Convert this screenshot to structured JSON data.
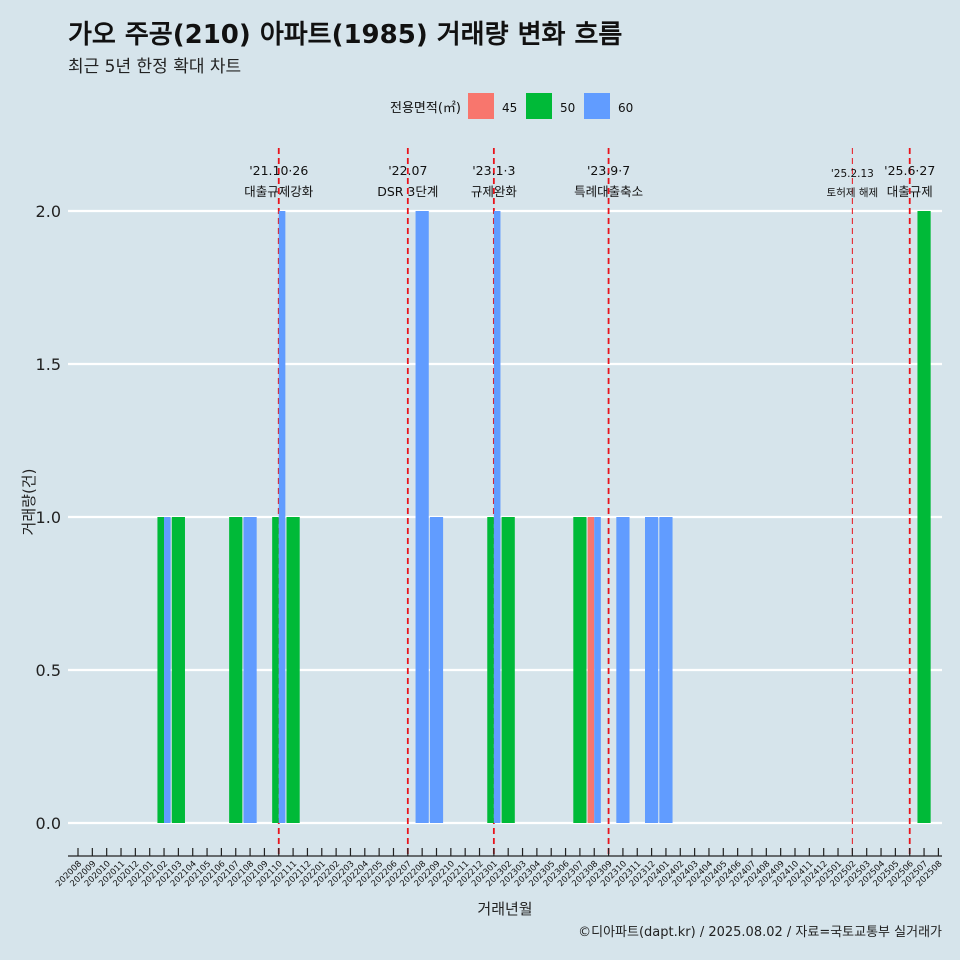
{
  "title": "가오 주공(210) 아파트(1985) 거래량 변화 흐름",
  "subtitle": "최근 5년 한정 확대 차트",
  "caption": "©디아파트(dapt.kr) / 2025.08.02 / 자료=국토교통부 실거래가",
  "colors": {
    "background": "#d6e4eb",
    "45": "#f8766d",
    "50": "#00ba38",
    "60": "#619cff",
    "event_line": "#e8141c"
  },
  "chart_data": {
    "type": "bar",
    "title": "가오 주공(210) 아파트(1985) 거래량 변화 흐름",
    "subtitle": "최근 5년 한정 확대 차트",
    "xlabel": "거래년월",
    "ylabel": "거래량(건)",
    "ylim": [
      0,
      2.0
    ],
    "yticks": [
      "0.0",
      "0.5",
      "1.0",
      "1.5",
      "2.0"
    ],
    "legend": {
      "title": "전용면적(㎡)",
      "position": "top-center",
      "entries": [
        "45",
        "50",
        "60"
      ]
    },
    "categories": [
      "202008",
      "202009",
      "202010",
      "202011",
      "202012",
      "202101",
      "202102",
      "202103",
      "202104",
      "202105",
      "202106",
      "202107",
      "202108",
      "202109",
      "202110",
      "202111",
      "202112",
      "202201",
      "202202",
      "202203",
      "202204",
      "202205",
      "202206",
      "202207",
      "202208",
      "202209",
      "202210",
      "202211",
      "202212",
      "202301",
      "202302",
      "202303",
      "202304",
      "202305",
      "202306",
      "202307",
      "202308",
      "202309",
      "202310",
      "202311",
      "202312",
      "202401",
      "202402",
      "202403",
      "202404",
      "202405",
      "202406",
      "202407",
      "202408",
      "202409",
      "202410",
      "202411",
      "202412",
      "202501",
      "202502",
      "202503",
      "202504",
      "202505",
      "202506",
      "202507",
      "202508"
    ],
    "bars": [
      {
        "month": "202102",
        "series": "50",
        "value": 1
      },
      {
        "month": "202102",
        "series": "60",
        "value": 1
      },
      {
        "month": "202103",
        "series": "50",
        "value": 1
      },
      {
        "month": "202107",
        "series": "50",
        "value": 1
      },
      {
        "month": "202108",
        "series": "60",
        "value": 1
      },
      {
        "month": "202110",
        "series": "50",
        "value": 1
      },
      {
        "month": "202110",
        "series": "60",
        "value": 2
      },
      {
        "month": "202111",
        "series": "50",
        "value": 1
      },
      {
        "month": "202208",
        "series": "60",
        "value": 2
      },
      {
        "month": "202209",
        "series": "60",
        "value": 1
      },
      {
        "month": "202301",
        "series": "50",
        "value": 1
      },
      {
        "month": "202301",
        "series": "60",
        "value": 2
      },
      {
        "month": "202302",
        "series": "50",
        "value": 1
      },
      {
        "month": "202307",
        "series": "50",
        "value": 1
      },
      {
        "month": "202308",
        "series": "45",
        "value": 1
      },
      {
        "month": "202308",
        "series": "60",
        "value": 1
      },
      {
        "month": "202310",
        "series": "60",
        "value": 1
      },
      {
        "month": "202312",
        "series": "60",
        "value": 1
      },
      {
        "month": "202401",
        "series": "60",
        "value": 1
      },
      {
        "month": "202507",
        "series": "50",
        "value": 2
      }
    ],
    "events": [
      {
        "month_pos": "202110",
        "date": "'21.10·26",
        "label": "대출규제강화",
        "style": "major"
      },
      {
        "month_pos": "202207",
        "date": "'22.07",
        "label": "DSR 3단계",
        "style": "major"
      },
      {
        "month_pos": "202301",
        "date": "'23.1·3",
        "label": "규제완화",
        "style": "major"
      },
      {
        "month_pos": "202309",
        "date": "'23.9·7",
        "label": "특례대출축소",
        "style": "major"
      },
      {
        "month_pos": "202502",
        "date": "'25.2.13",
        "label": "토허제 해제",
        "style": "minor"
      },
      {
        "month_pos": "202506",
        "date": "'25.6·27",
        "label": "대출규제",
        "style": "major"
      }
    ]
  }
}
